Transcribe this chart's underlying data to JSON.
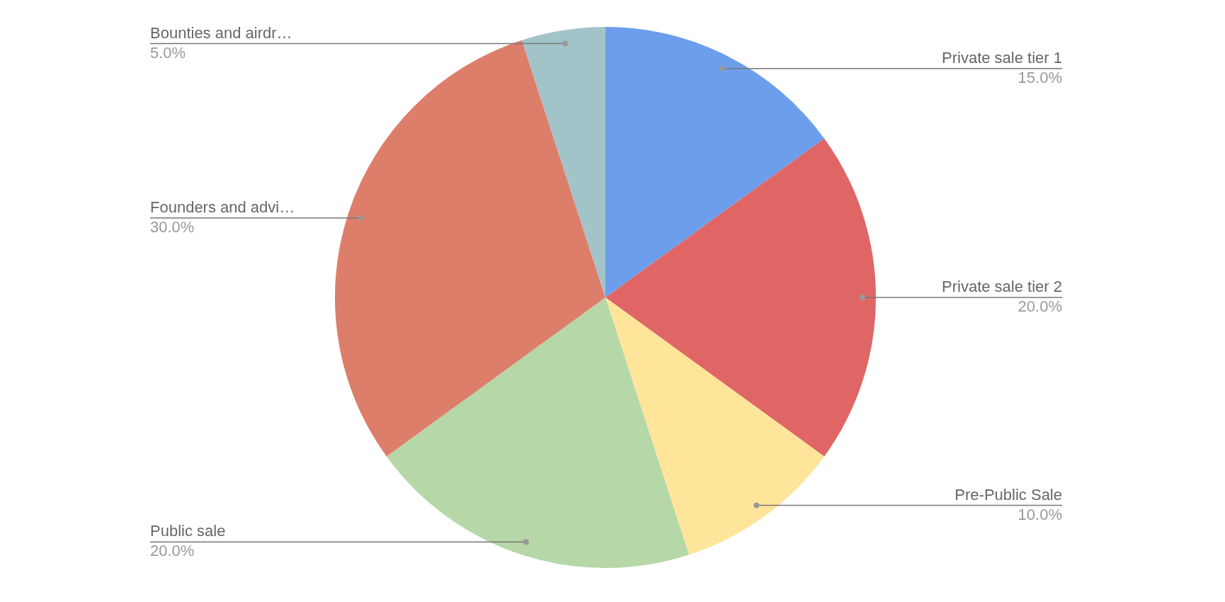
{
  "chart_data": {
    "type": "pie",
    "categories": [
      "Private sale tier 1",
      "Private sale tier 2",
      "Pre-Public Sale",
      "Public sale",
      "Founders and advi…",
      "Bounties and airdr…"
    ],
    "values": [
      15,
      20,
      10,
      20,
      30,
      5
    ],
    "colors": [
      "#6d9eeb",
      "#e06666",
      "#ffe599",
      "#b6d7a8",
      "#dd7e6b",
      "#a2c4c9"
    ],
    "value_labels": [
      "15.0%",
      "20.0%",
      "10.0%",
      "20.0%",
      "30.0%",
      "5.0%"
    ],
    "legend": false
  }
}
